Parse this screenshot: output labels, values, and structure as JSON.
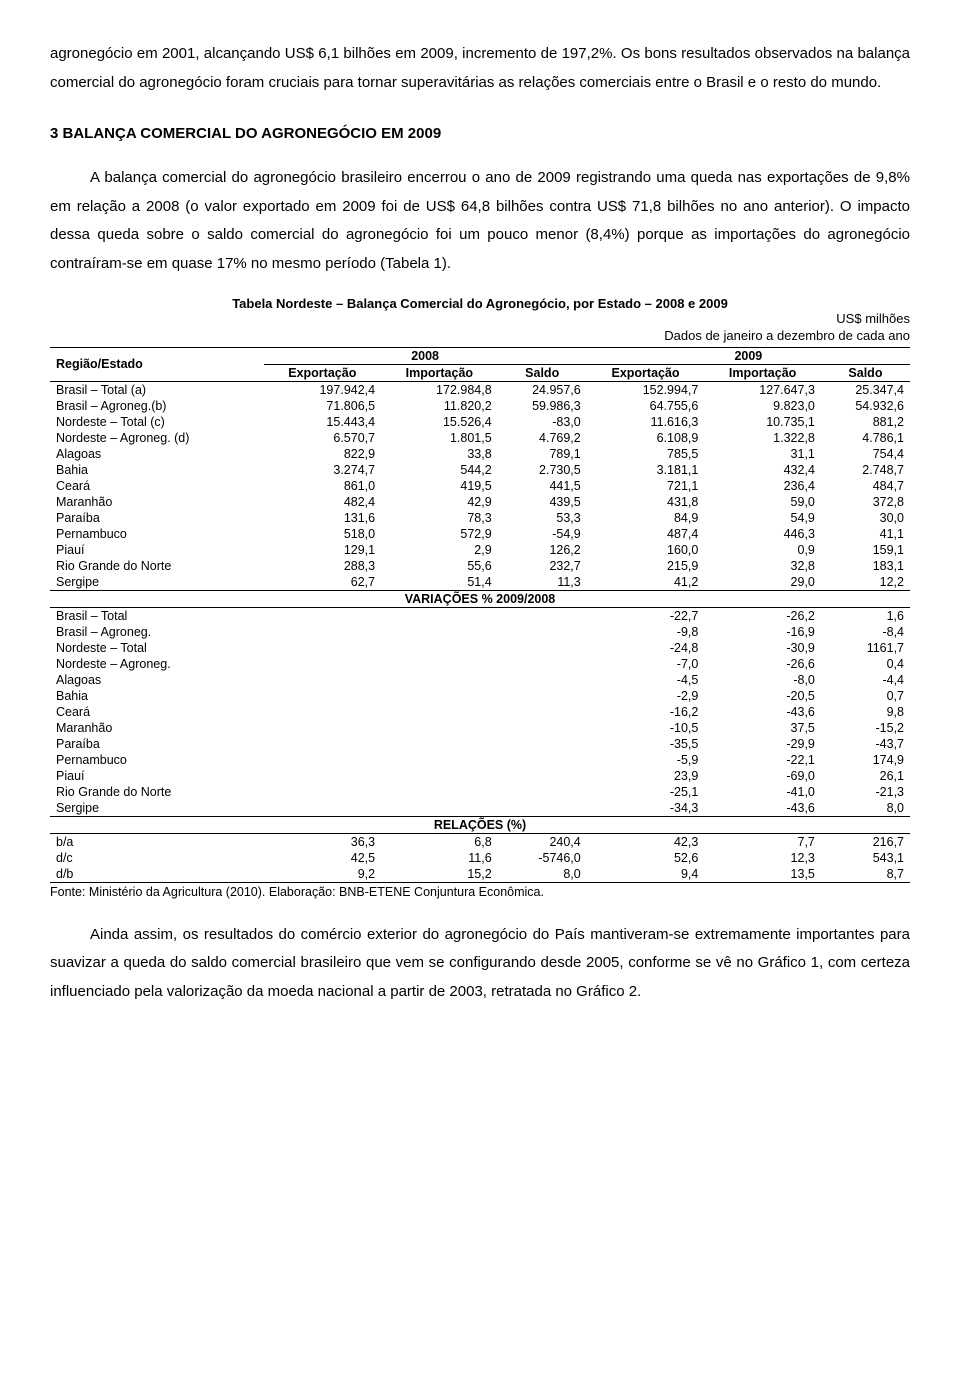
{
  "paragraphs": {
    "p1": "agronegócio em 2001, alcançando US$ 6,1 bilhões em 2009, incremento de 197,2%. Os bons resultados observados na balança comercial do agronegócio foram cruciais para tornar superavitárias as relações comerciais entre o Brasil e o resto do mundo.",
    "section_title": "3 BALANÇA COMERCIAL DO AGRONEGÓCIO EM 2009",
    "p2": "A balança comercial do agronegócio brasileiro encerrou o ano de 2009 registrando uma queda nas exportações de 9,8% em relação a 2008 (o valor exportado em 2009 foi de US$ 64,8 bilhões contra US$ 71,8 bilhões no ano anterior). O impacto dessa queda sobre o saldo comercial do agronegócio foi um pouco menor (8,4%) porque as importações do agronegócio contraíram-se em quase 17% no mesmo período (Tabela 1).",
    "p3": "Ainda assim, os resultados do comércio exterior do agronegócio do País mantiveram-se extremamente importantes para suavizar a queda do saldo comercial brasileiro que vem se configurando desde 2005, conforme se vê no Gráfico 1, com certeza influenciado pela valorização da moeda nacional a partir de 2003, retratada no Gráfico 2."
  },
  "table": {
    "title": "Tabela Nordeste – Balança Comercial do Agronegócio, por Estado – 2008 e 2009",
    "unit": "US$ milhões",
    "period_note": "Dados de janeiro a dezembro de cada ano",
    "col_region": "Região/Estado",
    "year1": "2008",
    "year2": "2009",
    "sub_export": "Exportação",
    "sub_import": "Importação",
    "sub_balance": "Saldo",
    "main_rows": [
      {
        "label": "Brasil – Total (a)",
        "e1": "197.942,4",
        "i1": "172.984,8",
        "s1": "24.957,6",
        "e2": "152.994,7",
        "i2": "127.647,3",
        "s2": "25.347,4"
      },
      {
        "label": "Brasil – Agroneg.(b)",
        "e1": "71.806,5",
        "i1": "11.820,2",
        "s1": "59.986,3",
        "e2": "64.755,6",
        "i2": "9.823,0",
        "s2": "54.932,6"
      },
      {
        "label": "Nordeste – Total (c)",
        "e1": "15.443,4",
        "i1": "15.526,4",
        "s1": "-83,0",
        "e2": "11.616,3",
        "i2": "10.735,1",
        "s2": "881,2"
      },
      {
        "label": "Nordeste – Agroneg. (d)",
        "e1": "6.570,7",
        "i1": "1.801,5",
        "s1": "4.769,2",
        "e2": "6.108,9",
        "i2": "1.322,8",
        "s2": "4.786,1"
      },
      {
        "label": "Alagoas",
        "e1": "822,9",
        "i1": "33,8",
        "s1": "789,1",
        "e2": "785,5",
        "i2": "31,1",
        "s2": "754,4"
      },
      {
        "label": "Bahia",
        "e1": "3.274,7",
        "i1": "544,2",
        "s1": "2.730,5",
        "e2": "3.181,1",
        "i2": "432,4",
        "s2": "2.748,7"
      },
      {
        "label": "Ceará",
        "e1": "861,0",
        "i1": "419,5",
        "s1": "441,5",
        "e2": "721,1",
        "i2": "236,4",
        "s2": "484,7"
      },
      {
        "label": "Maranhão",
        "e1": "482,4",
        "i1": "42,9",
        "s1": "439,5",
        "e2": "431,8",
        "i2": "59,0",
        "s2": "372,8"
      },
      {
        "label": "Paraíba",
        "e1": "131,6",
        "i1": "78,3",
        "s1": "53,3",
        "e2": "84,9",
        "i2": "54,9",
        "s2": "30,0"
      },
      {
        "label": "Pernambuco",
        "e1": "518,0",
        "i1": "572,9",
        "s1": "-54,9",
        "e2": "487,4",
        "i2": "446,3",
        "s2": "41,1"
      },
      {
        "label": "Piauí",
        "e1": "129,1",
        "i1": "2,9",
        "s1": "126,2",
        "e2": "160,0",
        "i2": "0,9",
        "s2": "159,1"
      },
      {
        "label": "Rio Grande do Norte",
        "e1": "288,3",
        "i1": "55,6",
        "s1": "232,7",
        "e2": "215,9",
        "i2": "32,8",
        "s2": "183,1"
      },
      {
        "label": "Sergipe",
        "e1": "62,7",
        "i1": "51,4",
        "s1": "11,3",
        "e2": "41,2",
        "i2": "29,0",
        "s2": "12,2"
      }
    ],
    "var_header": "VARIAÇÕES % 2009/2008",
    "var_rows": [
      {
        "label": "Brasil – Total",
        "e2": "-22,7",
        "i2": "-26,2",
        "s2": "1,6"
      },
      {
        "label": "Brasil – Agroneg.",
        "e2": "-9,8",
        "i2": "-16,9",
        "s2": "-8,4"
      },
      {
        "label": "Nordeste – Total",
        "e2": "-24,8",
        "i2": "-30,9",
        "s2": "1161,7"
      },
      {
        "label": "Nordeste – Agroneg.",
        "e2": "-7,0",
        "i2": "-26,6",
        "s2": "0,4"
      },
      {
        "label": "Alagoas",
        "e2": "-4,5",
        "i2": "-8,0",
        "s2": "-4,4"
      },
      {
        "label": "Bahia",
        "e2": "-2,9",
        "i2": "-20,5",
        "s2": "0,7"
      },
      {
        "label": "Ceará",
        "e2": "-16,2",
        "i2": "-43,6",
        "s2": "9,8"
      },
      {
        "label": "Maranhão",
        "e2": "-10,5",
        "i2": "37,5",
        "s2": "-15,2"
      },
      {
        "label": "Paraíba",
        "e2": "-35,5",
        "i2": "-29,9",
        "s2": "-43,7"
      },
      {
        "label": "Pernambuco",
        "e2": "-5,9",
        "i2": "-22,1",
        "s2": "174,9"
      },
      {
        "label": "Piauí",
        "e2": "23,9",
        "i2": "-69,0",
        "s2": "26,1"
      },
      {
        "label": "Rio Grande do Norte",
        "e2": "-25,1",
        "i2": "-41,0",
        "s2": "-21,3"
      },
      {
        "label": "Sergipe",
        "e2": "-34,3",
        "i2": "-43,6",
        "s2": "8,0"
      }
    ],
    "rel_header": "RELAÇÕES (%)",
    "rel_rows": [
      {
        "label": "b/a",
        "e1": "36,3",
        "i1": "6,8",
        "s1": "240,4",
        "e2": "42,3",
        "i2": "7,7",
        "s2": "216,7"
      },
      {
        "label": "d/c",
        "e1": "42,5",
        "i1": "11,6",
        "s1": "-5746,0",
        "e2": "52,6",
        "i2": "12,3",
        "s2": "543,1"
      },
      {
        "label": "d/b",
        "e1": "9,2",
        "i1": "15,2",
        "s1": "8,0",
        "e2": "9,4",
        "i2": "13,5",
        "s2": "8,7"
      }
    ],
    "source": "Fonte: Ministério da Agricultura (2010). Elaboração: BNB-ETENE Conjuntura Econômica."
  }
}
